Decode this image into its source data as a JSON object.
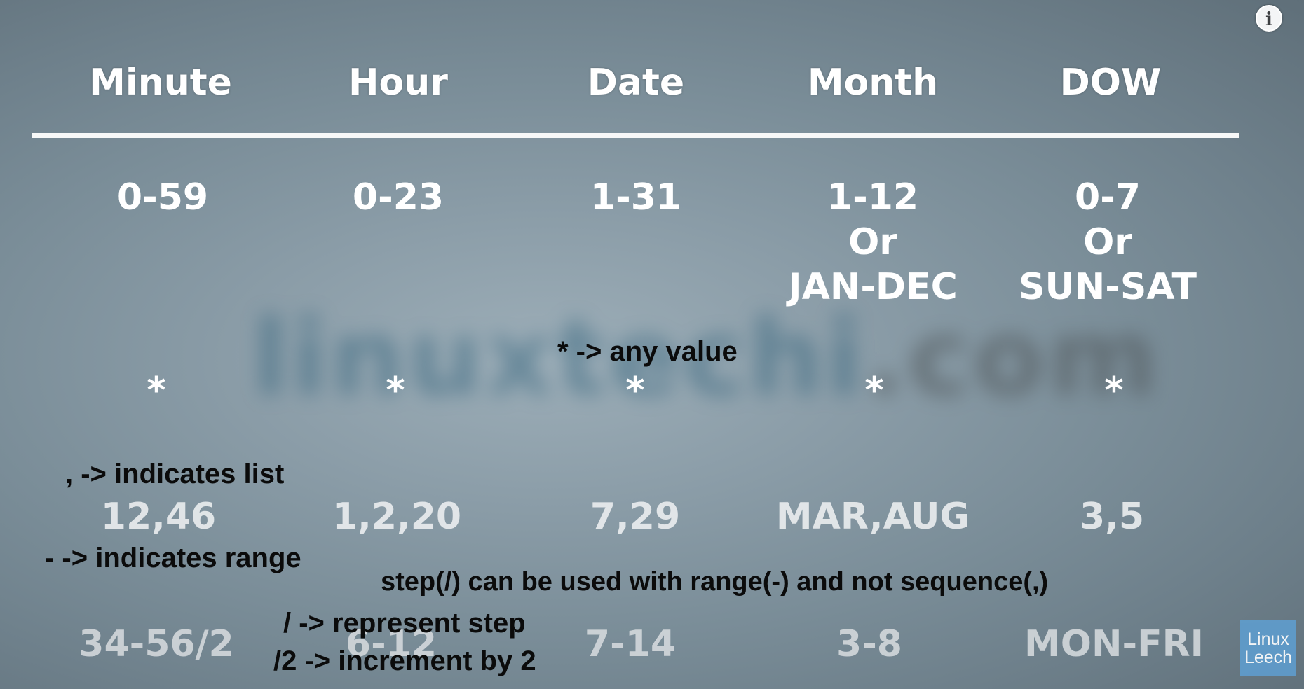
{
  "watermark": {
    "main": "linuxtechi",
    "tail": ".com"
  },
  "info_icon": {
    "glyph": "i",
    "icon": "info-icon"
  },
  "headers": [
    "Minute",
    "Hour",
    "Date",
    "Month",
    "DOW"
  ],
  "ranges": [
    "0-59",
    "0-23",
    "1-31",
    "1-12\nOr\nJAN-DEC",
    "0-7\nOr\nSUN-SAT"
  ],
  "stars": [
    "*",
    "*",
    "*",
    "*",
    "*"
  ],
  "lists": [
    "12,46",
    "1,2,20",
    "7,29",
    "MAR,AUG",
    "3,5"
  ],
  "steps": [
    "34-56/2",
    "6-12",
    "7-14",
    "3-8",
    "MON-FRI"
  ],
  "annotations": {
    "any_value": "* -> any value",
    "list": ", -> indicates list",
    "range": "- -> indicates range",
    "step_rule": "step(/) can be used with range(-) and not sequence(,)",
    "step": "/ -> represent step",
    "increment": "/2 -> increment by 2"
  },
  "logo": {
    "line1": "Linux",
    "line2": "Leech",
    "color": "#5f9ccc"
  }
}
